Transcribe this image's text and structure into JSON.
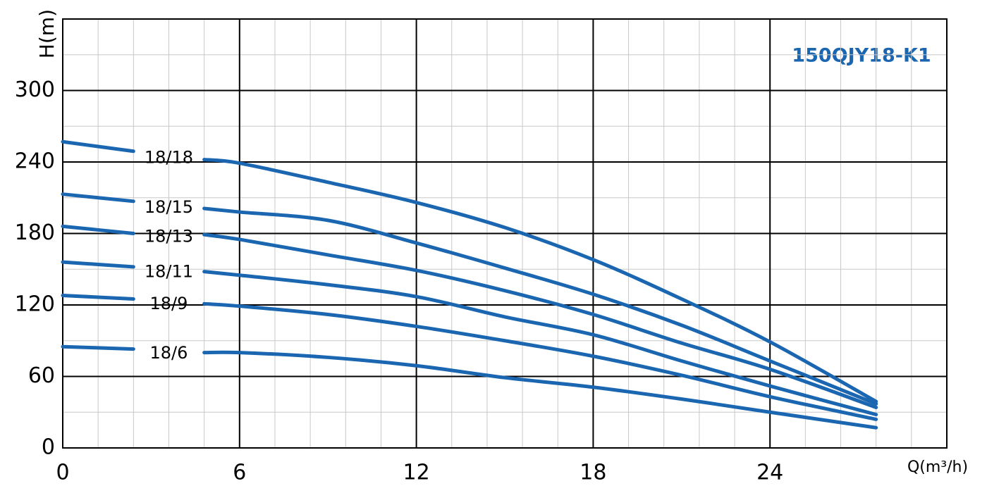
{
  "chart_data": {
    "type": "line",
    "title": "150QJY18-K1",
    "x_label": "Q(m³/h)",
    "y_label": "H(m)",
    "x": [
      0,
      2.4,
      3.6,
      4.8,
      6,
      9,
      12,
      15,
      18,
      21,
      24,
      27.6
    ],
    "series": [
      {
        "name": "18/18",
        "color": "#1a66b0",
        "values": [
          257,
          249,
          null,
          242,
          239,
          223,
          206,
          185,
          158,
          125,
          89,
          39
        ]
      },
      {
        "name": "18/15",
        "color": "#1a66b0",
        "values": [
          213,
          207,
          null,
          201,
          198,
          191,
          172,
          151,
          129,
          103,
          73,
          37
        ]
      },
      {
        "name": "18/13",
        "color": "#1a66b0",
        "values": [
          186,
          180,
          null,
          179,
          175,
          162,
          149,
          132,
          112,
          88,
          66,
          34
        ]
      },
      {
        "name": "18/11",
        "color": "#1a66b0",
        "values": [
          156,
          152,
          null,
          148,
          145,
          137,
          127,
          110,
          95,
          73,
          52,
          28
        ]
      },
      {
        "name": "18/9",
        "color": "#1a66b0",
        "values": [
          128,
          125,
          null,
          121,
          119,
          112,
          102,
          90,
          77,
          61,
          43,
          24
        ]
      },
      {
        "name": "18/6",
        "color": "#1a66b0",
        "values": [
          85,
          83,
          null,
          80,
          80,
          76,
          69,
          59,
          51,
          41,
          30,
          17
        ]
      }
    ],
    "xlim": [
      0,
      30
    ],
    "xticks": [
      0,
      6,
      12,
      18,
      24
    ],
    "ylim": [
      0,
      360
    ],
    "yticks": [
      0,
      60,
      120,
      180,
      240,
      300
    ],
    "grid": true
  }
}
